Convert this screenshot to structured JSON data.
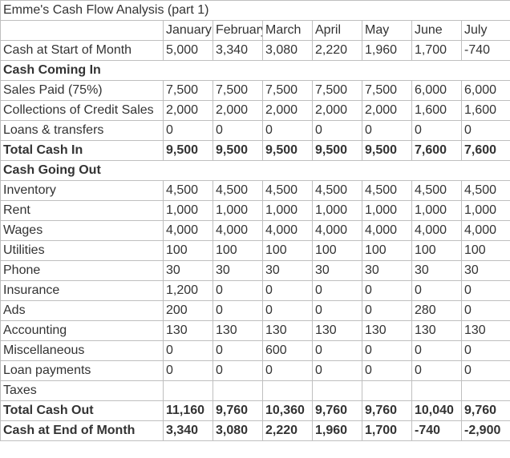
{
  "title": "Emme's Cash Flow Analysis (part 1)",
  "months": [
    "January",
    "February",
    "March",
    "April",
    "May",
    "June",
    "July"
  ],
  "rows": [
    {
      "label": "Cash at Start of Month",
      "bold": false,
      "values": [
        "5,000",
        "3,340",
        "3,080",
        "2,220",
        "1,960",
        "1,700",
        "-740"
      ]
    },
    {
      "label": "Cash Coming In",
      "bold": true,
      "values": null
    },
    {
      "label": "Sales Paid (75%)",
      "bold": false,
      "values": [
        "7,500",
        "7,500",
        "7,500",
        "7,500",
        "7,500",
        "6,000",
        "6,000"
      ]
    },
    {
      "label": "Collections of Credit Sales",
      "bold": false,
      "values": [
        "2,000",
        "2,000",
        "2,000",
        "2,000",
        "2,000",
        "1,600",
        "1,600"
      ]
    },
    {
      "label": "Loans & transfers",
      "bold": false,
      "values": [
        "0",
        "0",
        "0",
        "0",
        "0",
        "0",
        "0"
      ]
    },
    {
      "label": "Total Cash In",
      "bold": true,
      "values": [
        "9,500",
        "9,500",
        "9,500",
        "9,500",
        "9,500",
        "7,600",
        "7,600"
      ]
    },
    {
      "label": "Cash Going Out",
      "bold": true,
      "values": null
    },
    {
      "label": "Inventory",
      "bold": false,
      "values": [
        "4,500",
        "4,500",
        "4,500",
        "4,500",
        "4,500",
        "4,500",
        "4,500"
      ]
    },
    {
      "label": "Rent",
      "bold": false,
      "values": [
        "1,000",
        "1,000",
        "1,000",
        "1,000",
        "1,000",
        "1,000",
        "1,000"
      ]
    },
    {
      "label": "Wages",
      "bold": false,
      "values": [
        "4,000",
        "4,000",
        "4,000",
        "4,000",
        "4,000",
        "4,000",
        "4,000"
      ]
    },
    {
      "label": "Utilities",
      "bold": false,
      "values": [
        "100",
        "100",
        "100",
        "100",
        "100",
        "100",
        "100"
      ]
    },
    {
      "label": "Phone",
      "bold": false,
      "values": [
        "30",
        "30",
        "30",
        "30",
        "30",
        "30",
        "30"
      ]
    },
    {
      "label": "Insurance",
      "bold": false,
      "values": [
        "1,200",
        "0",
        "0",
        "0",
        "0",
        "0",
        "0"
      ]
    },
    {
      "label": "Ads",
      "bold": false,
      "values": [
        "200",
        "0",
        "0",
        "0",
        "0",
        "280",
        "0"
      ]
    },
    {
      "label": "Accounting",
      "bold": false,
      "values": [
        "130",
        "130",
        "130",
        "130",
        "130",
        "130",
        "130"
      ]
    },
    {
      "label": "Miscellaneous",
      "bold": false,
      "values": [
        "0",
        "0",
        "600",
        "0",
        "0",
        "0",
        "0"
      ]
    },
    {
      "label": "Loan payments",
      "bold": false,
      "values": [
        "0",
        "0",
        "0",
        "0",
        "0",
        "0",
        "0"
      ]
    },
    {
      "label": "Taxes",
      "bold": false,
      "values": [
        "",
        "",
        "",
        "",
        "",
        "",
        ""
      ]
    },
    {
      "label": "Total Cash Out",
      "bold": true,
      "values": [
        "11,160",
        "9,760",
        "10,360",
        "9,760",
        "9,760",
        "10,040",
        "9,760"
      ]
    },
    {
      "label": "Cash at End of Month",
      "bold": true,
      "values": [
        "3,340",
        "3,080",
        "2,220",
        "1,960",
        "1,700",
        "-740",
        "-2,900"
      ]
    }
  ]
}
